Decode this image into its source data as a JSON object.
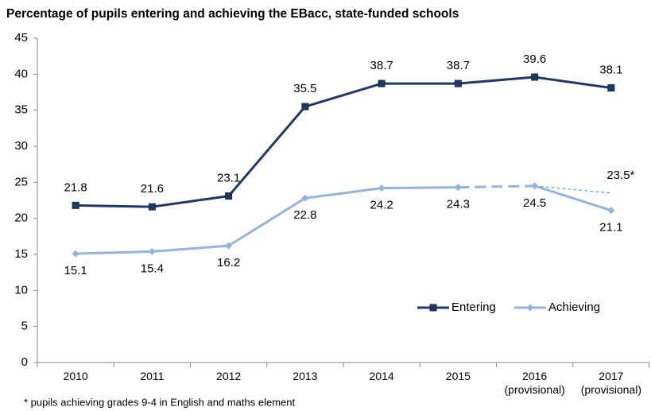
{
  "chart_data": {
    "type": "line",
    "title": "Percentage of pupils entering and achieving the EBacc, state-funded schools",
    "categories": [
      "2010",
      "2011",
      "2012",
      "2013",
      "2014",
      "2015",
      "2016\n(provisional)",
      "2017\n(provisional)"
    ],
    "series": [
      {
        "name": "Entering",
        "color": "#1f3864",
        "marker": "square",
        "label_position": "above",
        "values": [
          21.8,
          21.6,
          23.1,
          35.5,
          38.7,
          38.7,
          39.6,
          38.1
        ]
      },
      {
        "name": "Achieving",
        "color": "#95b3de",
        "marker": "diamond",
        "label_position": "below",
        "dashed_segment": 5,
        "values": [
          15.1,
          15.4,
          16.2,
          22.8,
          24.2,
          24.3,
          24.5,
          21.1
        ]
      },
      {
        "color": "#4bacc6",
        "dashed": true,
        "thin": true,
        "label_position": "above",
        "values": [
          null,
          null,
          null,
          null,
          null,
          null,
          24.5,
          23.5
        ],
        "value_labels": [
          null,
          null,
          null,
          null,
          null,
          null,
          null,
          "23.5*"
        ]
      }
    ],
    "ylim": [
      0,
      45
    ],
    "yticks": [
      0,
      5,
      10,
      15,
      20,
      25,
      30,
      35,
      40,
      45
    ],
    "grid": false,
    "legend": "lower right",
    "footnote": "* pupils achieving grades 9-4 in English and maths element"
  }
}
